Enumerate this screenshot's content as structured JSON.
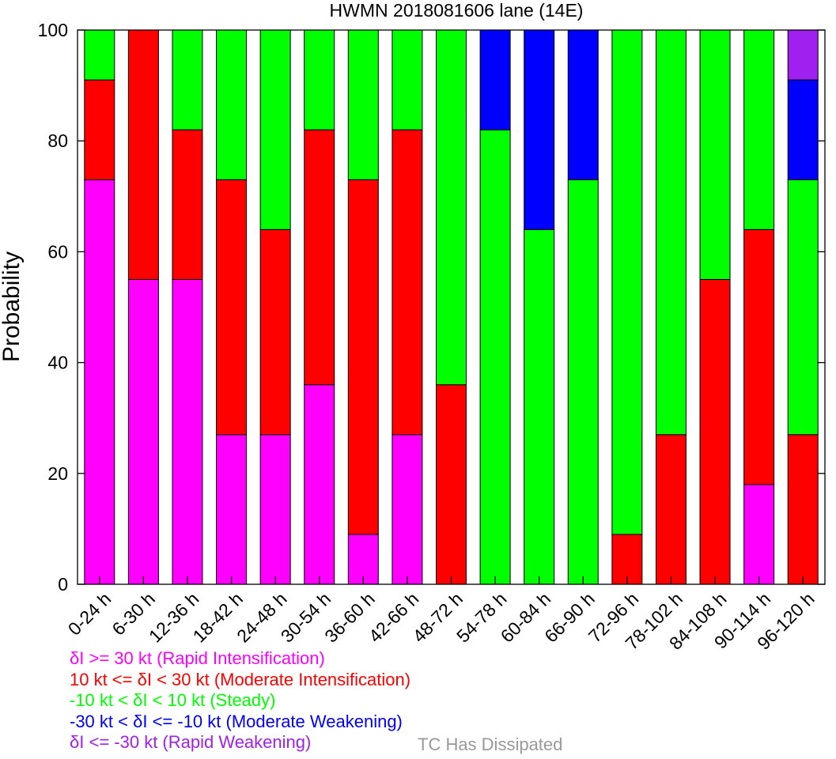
{
  "chart_data": {
    "type": "bar",
    "stacked": true,
    "title": "HWMN 2018081606 lane (14E)",
    "ylabel": "Probability",
    "xlabel": "",
    "ylim": [
      0,
      100
    ],
    "yticks": [
      0,
      20,
      40,
      60,
      80,
      100
    ],
    "grid": false,
    "categories": [
      "0-24 h",
      "6-30 h",
      "12-36 h",
      "18-42 h",
      "24-48 h",
      "30-54 h",
      "36-60 h",
      "42-66 h",
      "48-72 h",
      "54-78 h",
      "60-84 h",
      "66-90 h",
      "72-96 h",
      "78-102 h",
      "84-108 h",
      "90-114 h",
      "96-120 h"
    ],
    "series": [
      {
        "name": "δI >= 30 kt (Rapid Intensification)",
        "color": "#ff00ff",
        "values": [
          73,
          55,
          55,
          27,
          27,
          36,
          9,
          27,
          0,
          0,
          0,
          0,
          0,
          0,
          0,
          18,
          0
        ]
      },
      {
        "name": "10 kt <= δI < 30 kt (Moderate Intensification)",
        "color": "#ff0000",
        "values": [
          18,
          45,
          27,
          46,
          37,
          46,
          64,
          55,
          36,
          0,
          0,
          0,
          9,
          27,
          55,
          46,
          27
        ]
      },
      {
        "name": "-10 kt < δI < 10 kt (Steady)",
        "color": "#00ff00",
        "values": [
          9,
          0,
          18,
          27,
          36,
          18,
          27,
          18,
          64,
          82,
          64,
          73,
          91,
          73,
          45,
          36,
          46
        ]
      },
      {
        "name": "-30 kt < δI <= -10 kt (Moderate Weakening)",
        "color": "#0000ff",
        "values": [
          0,
          0,
          0,
          0,
          0,
          0,
          0,
          0,
          0,
          18,
          36,
          27,
          0,
          0,
          0,
          0,
          18
        ]
      },
      {
        "name": "δI <= -30 kt (Rapid Weakening)",
        "color": "#a020f0",
        "values": [
          0,
          0,
          0,
          0,
          0,
          0,
          0,
          0,
          0,
          0,
          0,
          0,
          0,
          0,
          0,
          0,
          9
        ]
      }
    ]
  },
  "dissipated_note": {
    "label": "TC Has Dissipated",
    "color": "#999999"
  }
}
